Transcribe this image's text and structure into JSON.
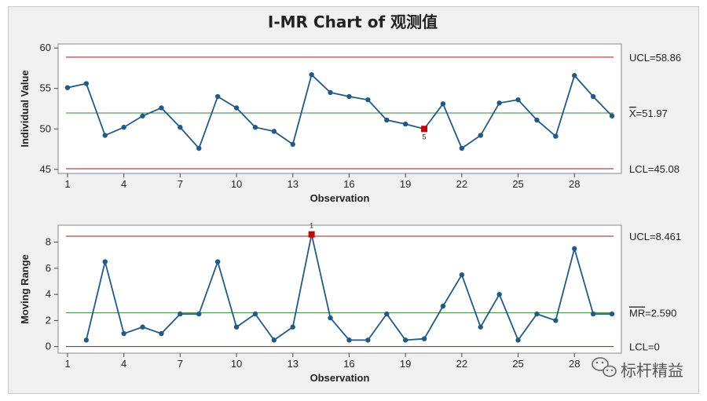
{
  "chart_data": [
    {
      "type": "line",
      "title": "I-MR Chart of 观测值",
      "xlabel": "Observation",
      "ylabel": "Individual Value",
      "xlim": [
        0.5,
        30.5
      ],
      "ylim": [
        44.5,
        60.5
      ],
      "x_ticks": [
        1,
        4,
        7,
        10,
        13,
        16,
        19,
        22,
        25,
        28
      ],
      "y_ticks": [
        45,
        50,
        55,
        60
      ],
      "x": [
        1,
        2,
        3,
        4,
        5,
        6,
        7,
        8,
        9,
        10,
        11,
        12,
        13,
        14,
        15,
        16,
        17,
        18,
        19,
        20,
        21,
        22,
        23,
        24,
        25,
        26,
        27,
        28,
        29,
        30
      ],
      "values": [
        55.1,
        55.6,
        49.2,
        50.2,
        51.6,
        52.6,
        50.2,
        47.6,
        54.0,
        52.6,
        50.2,
        49.7,
        48.1,
        56.7,
        54.5,
        54.0,
        53.6,
        51.1,
        50.6,
        50.0,
        53.1,
        47.6,
        49.2,
        53.2,
        53.6,
        51.1,
        49.1,
        56.6,
        54.0,
        51.6
      ],
      "lines": {
        "ucl": {
          "value": 58.86,
          "label": "UCL=58.86"
        },
        "center": {
          "value": 51.97,
          "label_prefix": "X",
          "label": "=51.97"
        },
        "lcl": {
          "value": 45.08,
          "label": "LCL=45.08"
        }
      },
      "flagged": [
        {
          "x": 20,
          "value": 50.0,
          "label": "5"
        }
      ],
      "grid": false,
      "colors": {
        "series": "#1f5a8c",
        "limit": "#a31515",
        "center": "#2e8b2e",
        "flag": "#cc0000"
      }
    },
    {
      "type": "line",
      "xlabel": "Observation",
      "ylabel": "Moving Range",
      "xlim": [
        0.5,
        30.5
      ],
      "ylim": [
        -0.5,
        9.3
      ],
      "x_ticks": [
        1,
        4,
        7,
        10,
        13,
        16,
        19,
        22,
        25,
        28
      ],
      "y_ticks": [
        0,
        2,
        4,
        6,
        8
      ],
      "x": [
        2,
        3,
        4,
        5,
        6,
        7,
        8,
        9,
        10,
        11,
        12,
        13,
        14,
        15,
        16,
        17,
        18,
        19,
        20,
        21,
        22,
        23,
        24,
        25,
        26,
        27,
        28,
        29,
        30
      ],
      "values": [
        0.5,
        6.5,
        1.0,
        1.5,
        1.0,
        2.5,
        2.5,
        6.5,
        1.5,
        2.5,
        0.5,
        1.5,
        8.6,
        2.2,
        0.5,
        0.5,
        2.5,
        0.5,
        0.6,
        3.1,
        5.5,
        1.5,
        4.0,
        0.5,
        2.5,
        2.0,
        7.5,
        2.5,
        2.5
      ],
      "lines": {
        "ucl": {
          "value": 8.461,
          "label": "UCL=8.461"
        },
        "center": {
          "value": 2.59,
          "label_prefix": "MR",
          "label": "=2.590"
        },
        "lcl": {
          "value": 0,
          "label": "LCL=0"
        }
      },
      "flagged": [
        {
          "x": 14,
          "value": 8.6,
          "label": "1"
        }
      ],
      "grid": false,
      "colors": {
        "series": "#1f5a8c",
        "limit": "#a31515",
        "center": "#2e8b2e",
        "flag": "#cc0000"
      }
    }
  ],
  "watermark": {
    "text": "标杆精益",
    "icon": "wechat-icon"
  }
}
